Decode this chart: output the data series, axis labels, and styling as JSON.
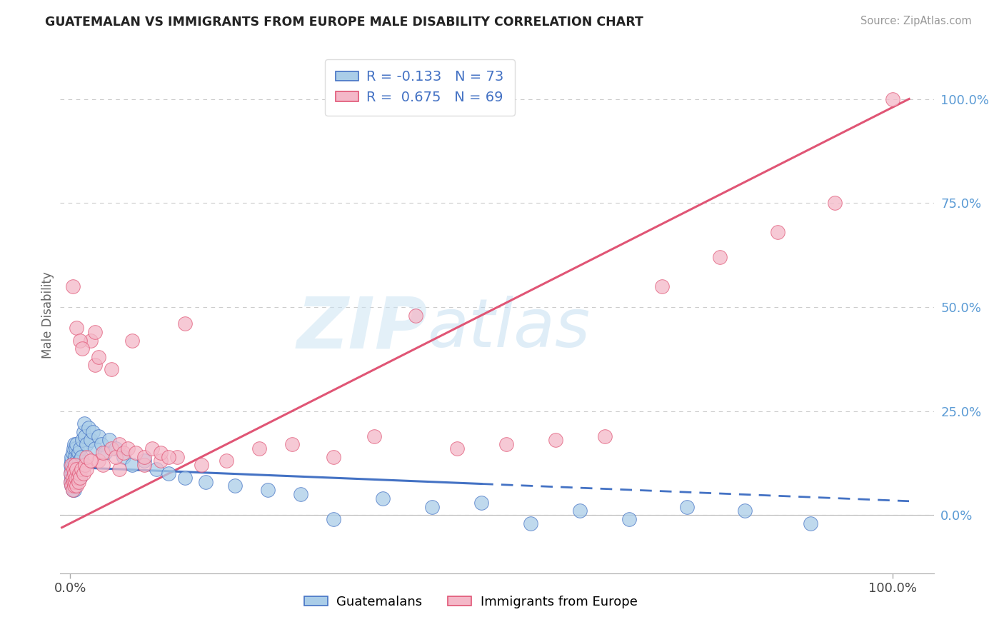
{
  "title": "GUATEMALAN VS IMMIGRANTS FROM EUROPE MALE DISABILITY CORRELATION CHART",
  "source": "Source: ZipAtlas.com",
  "ylabel": "Male Disability",
  "y_tick_labels": [
    "0.0%",
    "25.0%",
    "50.0%",
    "75.0%",
    "100.0%"
  ],
  "y_tick_values": [
    0.0,
    0.25,
    0.5,
    0.75,
    1.0
  ],
  "r_guatemalan": -0.133,
  "n_guatemalan": 73,
  "r_europe": 0.675,
  "n_europe": 69,
  "color_guatemalan_face": "#aacde8",
  "color_guatemalan_edge": "#4472c4",
  "color_europe_face": "#f4b8c8",
  "color_europe_edge": "#e05575",
  "line_color_guatemalan": "#4472c4",
  "line_color_europe": "#e05575",
  "legend_labels": [
    "Guatemalans",
    "Immigrants from Europe"
  ],
  "guat_x": [
    0.001,
    0.001,
    0.001,
    0.002,
    0.002,
    0.002,
    0.002,
    0.002,
    0.003,
    0.003,
    0.003,
    0.003,
    0.004,
    0.004,
    0.004,
    0.004,
    0.005,
    0.005,
    0.005,
    0.005,
    0.005,
    0.006,
    0.006,
    0.006,
    0.007,
    0.007,
    0.007,
    0.008,
    0.008,
    0.008,
    0.009,
    0.009,
    0.01,
    0.01,
    0.011,
    0.012,
    0.012,
    0.013,
    0.014,
    0.015,
    0.016,
    0.017,
    0.018,
    0.02,
    0.022,
    0.025,
    0.028,
    0.03,
    0.035,
    0.038,
    0.042,
    0.048,
    0.055,
    0.065,
    0.075,
    0.09,
    0.105,
    0.12,
    0.14,
    0.165,
    0.2,
    0.24,
    0.28,
    0.32,
    0.38,
    0.44,
    0.5,
    0.56,
    0.62,
    0.68,
    0.75,
    0.82,
    0.9
  ],
  "guat_y": [
    0.08,
    0.1,
    0.12,
    0.07,
    0.09,
    0.11,
    0.13,
    0.14,
    0.06,
    0.08,
    0.1,
    0.15,
    0.07,
    0.09,
    0.12,
    0.16,
    0.06,
    0.08,
    0.1,
    0.13,
    0.17,
    0.07,
    0.11,
    0.14,
    0.08,
    0.12,
    0.16,
    0.09,
    0.13,
    0.17,
    0.1,
    0.14,
    0.11,
    0.15,
    0.13,
    0.09,
    0.16,
    0.12,
    0.14,
    0.18,
    0.2,
    0.22,
    0.19,
    0.17,
    0.21,
    0.18,
    0.2,
    0.16,
    0.19,
    0.17,
    0.15,
    0.18,
    0.16,
    0.14,
    0.12,
    0.13,
    0.11,
    0.1,
    0.09,
    0.08,
    0.07,
    0.06,
    0.05,
    -0.01,
    0.04,
    0.02,
    0.03,
    -0.02,
    0.01,
    -0.01,
    0.02,
    0.01,
    -0.02
  ],
  "euro_x": [
    0.001,
    0.001,
    0.002,
    0.002,
    0.003,
    0.003,
    0.003,
    0.004,
    0.004,
    0.005,
    0.005,
    0.006,
    0.006,
    0.007,
    0.008,
    0.008,
    0.009,
    0.01,
    0.011,
    0.012,
    0.014,
    0.016,
    0.018,
    0.02,
    0.025,
    0.03,
    0.035,
    0.04,
    0.05,
    0.06,
    0.075,
    0.09,
    0.11,
    0.13,
    0.16,
    0.19,
    0.23,
    0.27,
    0.32,
    0.37,
    0.42,
    0.47,
    0.53,
    0.59,
    0.65,
    0.72,
    0.79,
    0.86,
    0.93,
    1.0,
    0.008,
    0.012,
    0.015,
    0.02,
    0.025,
    0.03,
    0.035,
    0.04,
    0.05,
    0.055,
    0.06,
    0.065,
    0.07,
    0.08,
    0.09,
    0.1,
    0.11,
    0.12,
    0.14
  ],
  "euro_y": [
    0.08,
    0.1,
    0.07,
    0.12,
    0.06,
    0.09,
    0.55,
    0.08,
    0.11,
    0.07,
    0.1,
    0.08,
    0.12,
    0.09,
    0.07,
    0.11,
    0.09,
    0.08,
    0.1,
    0.09,
    0.11,
    0.1,
    0.12,
    0.11,
    0.42,
    0.44,
    0.13,
    0.12,
    0.35,
    0.11,
    0.42,
    0.12,
    0.13,
    0.14,
    0.12,
    0.13,
    0.16,
    0.17,
    0.14,
    0.19,
    0.48,
    0.16,
    0.17,
    0.18,
    0.19,
    0.55,
    0.62,
    0.68,
    0.75,
    1.0,
    0.45,
    0.42,
    0.4,
    0.14,
    0.13,
    0.36,
    0.38,
    0.15,
    0.16,
    0.14,
    0.17,
    0.15,
    0.16,
    0.15,
    0.14,
    0.16,
    0.15,
    0.14,
    0.46
  ]
}
